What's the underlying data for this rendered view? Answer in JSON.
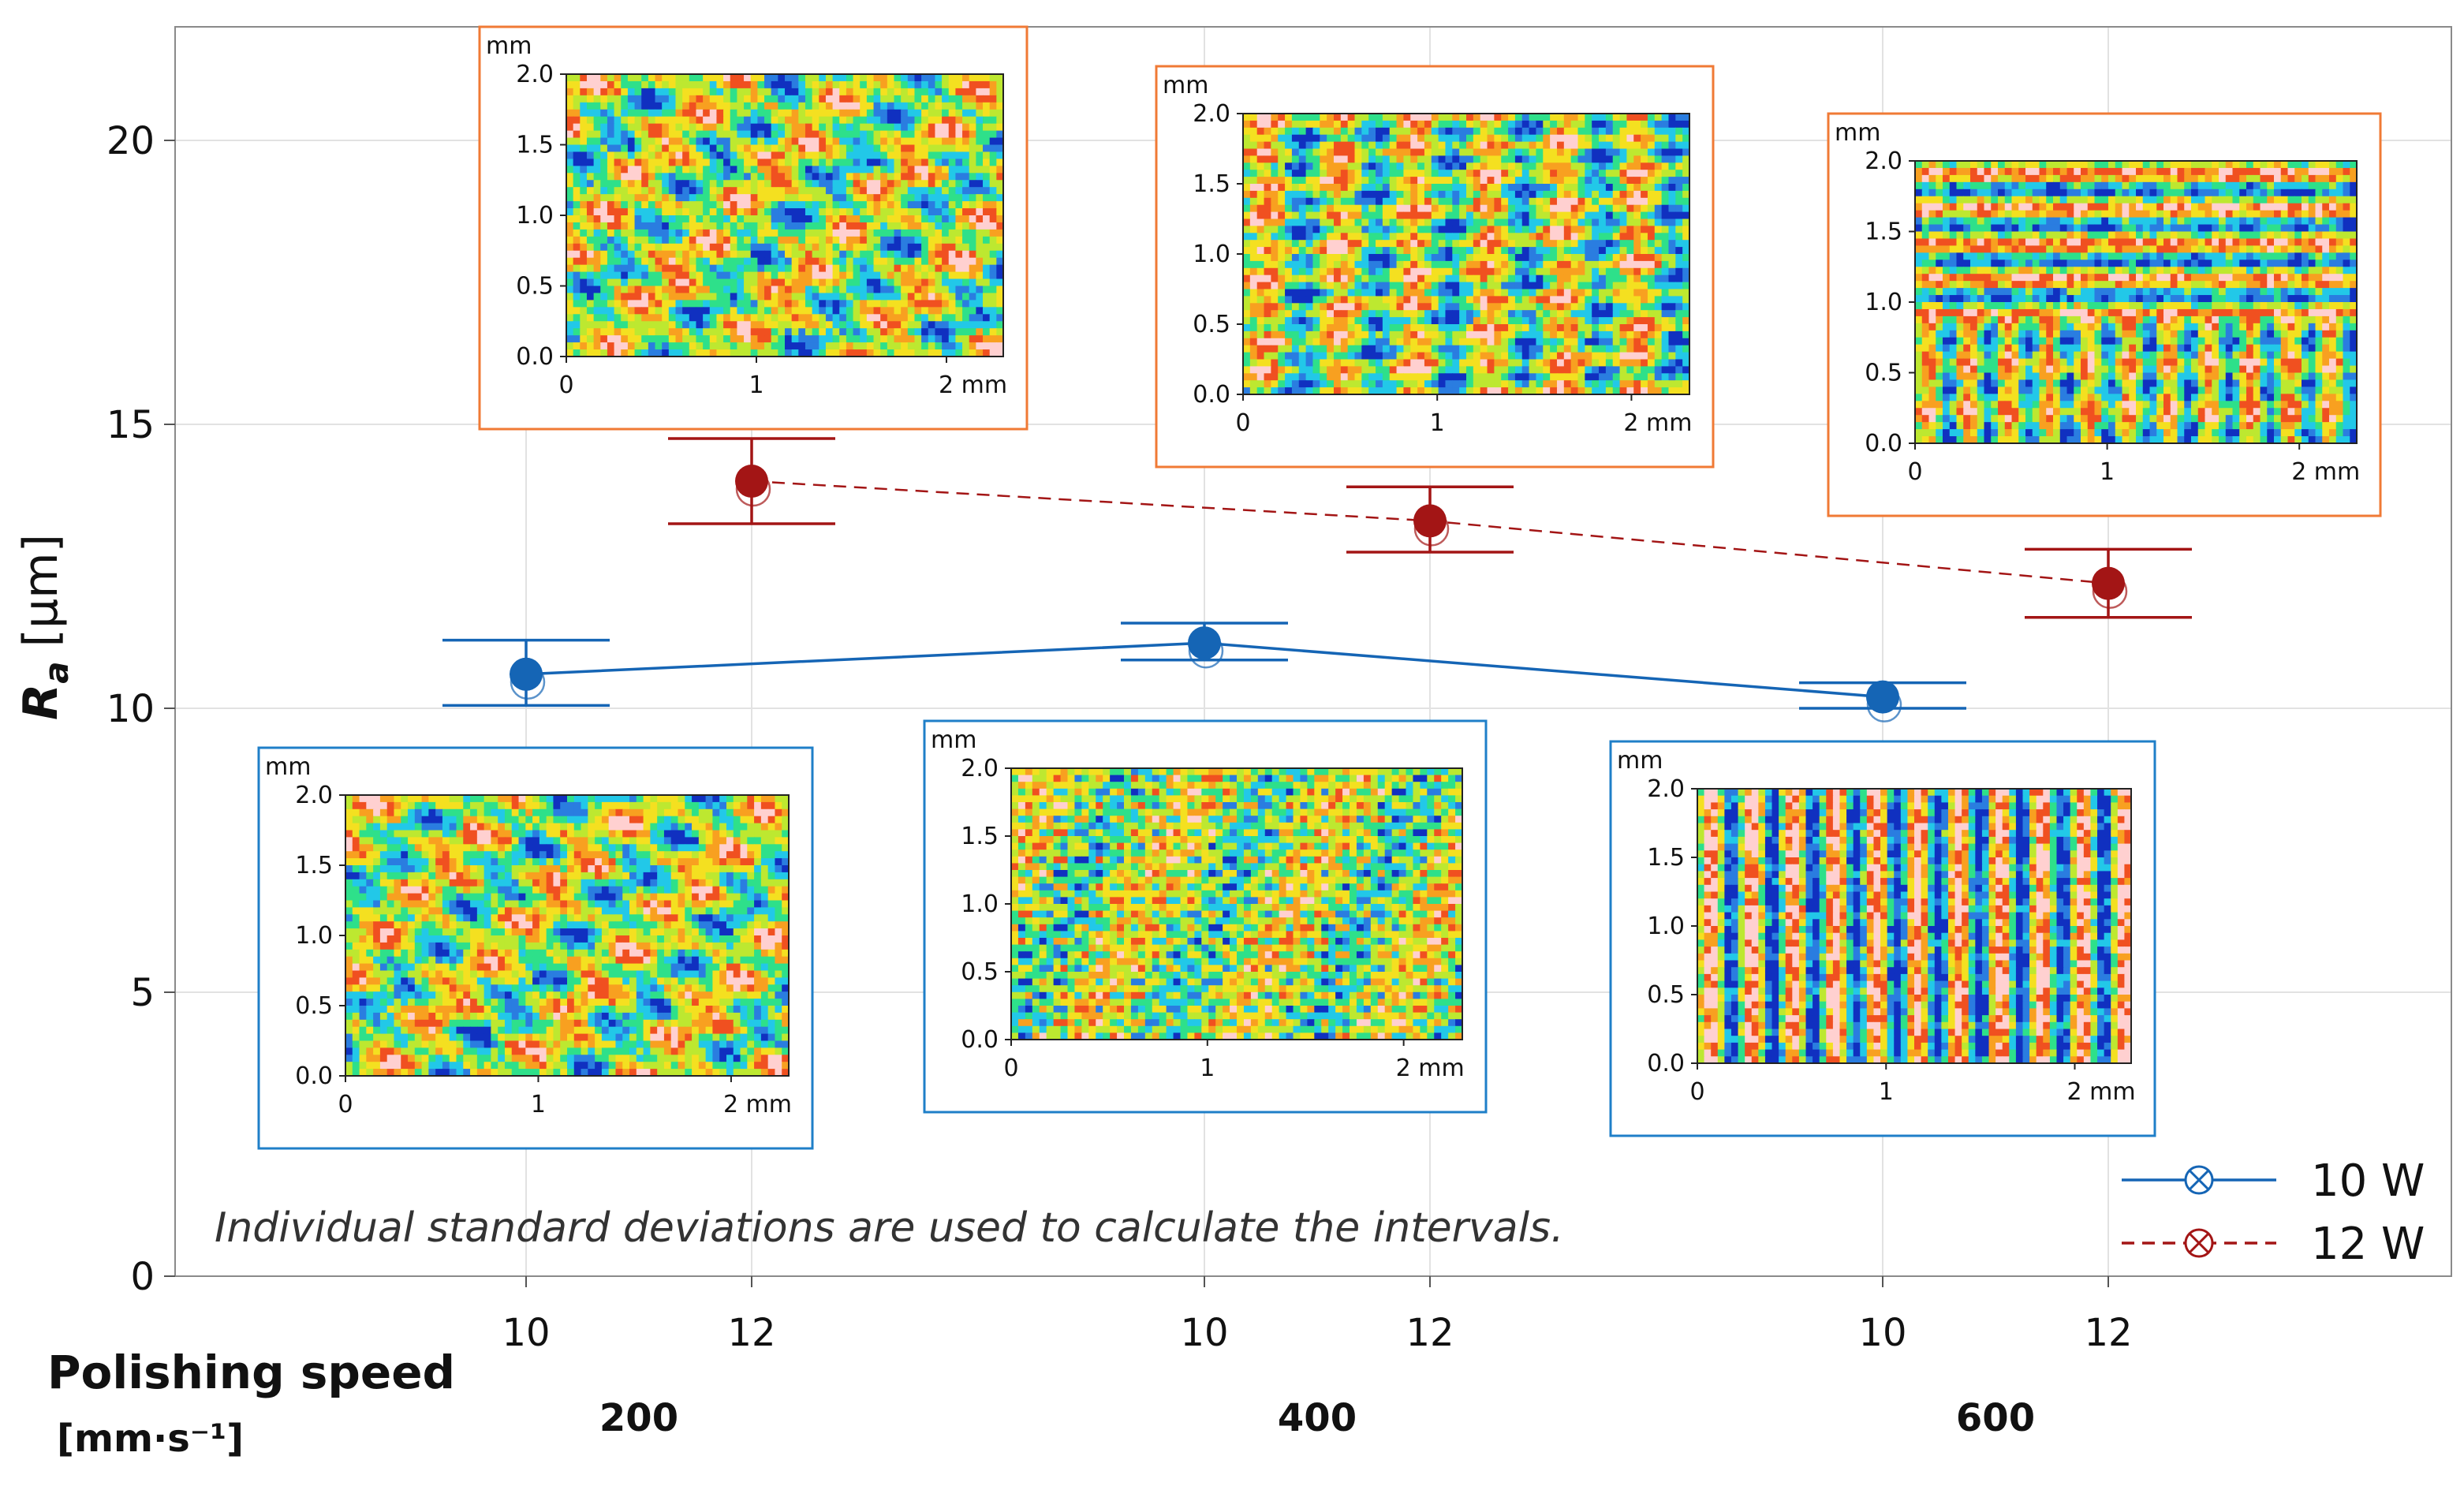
{
  "chart_data": {
    "type": "scatter",
    "title": "",
    "ylabel": "R",
    "ylabel_subscript": "a",
    "ylabel_unit": "[µm]",
    "xlabel_line1": "Polishing speed",
    "xlabel_line2": "[mm·s⁻¹]",
    "ylim": [
      0,
      22
    ],
    "yticks": [
      "0",
      "5",
      "10",
      "15",
      "20"
    ],
    "groups": [
      {
        "speed": "200",
        "powers": [
          "10",
          "12"
        ]
      },
      {
        "speed": "400",
        "powers": [
          "10",
          "12"
        ]
      },
      {
        "speed": "600",
        "powers": [
          "10",
          "12"
        ]
      }
    ],
    "series": [
      {
        "name": "10 W",
        "color": "#1565b5",
        "line_style": "solid",
        "points": [
          {
            "group": "200",
            "power": "10",
            "mean": 10.6,
            "low": 10.05,
            "high": 11.2
          },
          {
            "group": "400",
            "power": "10",
            "mean": 11.15,
            "low": 10.85,
            "high": 11.5
          },
          {
            "group": "600",
            "power": "10",
            "mean": 10.2,
            "low": 10.0,
            "high": 10.45
          }
        ]
      },
      {
        "name": "12 W",
        "color": "#a31515",
        "line_style": "dashed",
        "points": [
          {
            "group": "200",
            "power": "12",
            "mean": 14.0,
            "low": 13.25,
            "high": 14.75
          },
          {
            "group": "400",
            "power": "12",
            "mean": 13.3,
            "low": 12.75,
            "high": 13.9
          },
          {
            "group": "600",
            "power": "12",
            "mean": 12.2,
            "low": 11.6,
            "high": 12.8
          }
        ]
      }
    ],
    "annotation": "Individual standard deviations are used to calculate the intervals.",
    "legend_position": "bottom-right",
    "insets": [
      {
        "id": "200-12W",
        "series": "12 W",
        "unit": "mm",
        "yticks": [
          "0.0",
          "0.5",
          "1.0",
          "1.5",
          "2.0"
        ],
        "xticks": [
          "0",
          "1",
          "2 mm"
        ],
        "border_color": "#f07a35",
        "pattern": "random"
      },
      {
        "id": "400-12W",
        "series": "12 W",
        "unit": "mm",
        "yticks": [
          "0.0",
          "0.5",
          "1.0",
          "1.5",
          "2.0"
        ],
        "xticks": [
          "0",
          "1",
          "2 mm"
        ],
        "border_color": "#f07a35",
        "pattern": "columns"
      },
      {
        "id": "600-12W",
        "series": "12 W",
        "unit": "mm",
        "yticks": [
          "0.0",
          "0.5",
          "1.0",
          "1.5",
          "2.0"
        ],
        "xticks": [
          "0",
          "1",
          "2 mm"
        ],
        "border_color": "#f07a35",
        "pattern": "grid"
      },
      {
        "id": "200-10W",
        "series": "10 W",
        "unit": "mm",
        "yticks": [
          "0.0",
          "0.5",
          "1.0",
          "1.5",
          "2.0"
        ],
        "xticks": [
          "0",
          "1",
          "2 mm"
        ],
        "border_color": "#1f7fc8",
        "pattern": "random"
      },
      {
        "id": "400-10W",
        "series": "10 W",
        "unit": "mm",
        "yticks": [
          "0.0",
          "0.5",
          "1.0",
          "1.5",
          "2.0"
        ],
        "xticks": [
          "0",
          "1",
          "2 mm"
        ],
        "border_color": "#1f7fc8",
        "pattern": "dots"
      },
      {
        "id": "600-10W",
        "series": "10 W",
        "unit": "mm",
        "yticks": [
          "0.0",
          "0.5",
          "1.0",
          "1.5",
          "2.0"
        ],
        "xticks": [
          "0",
          "1",
          "2 mm"
        ],
        "border_color": "#1f7fc8",
        "pattern": "stripes"
      }
    ],
    "colormap": [
      "#1030c0",
      "#2a7de0",
      "#22c8e8",
      "#2ee08a",
      "#bde830",
      "#f4e020",
      "#f8a020",
      "#f05020",
      "#ffd0d0"
    ]
  }
}
